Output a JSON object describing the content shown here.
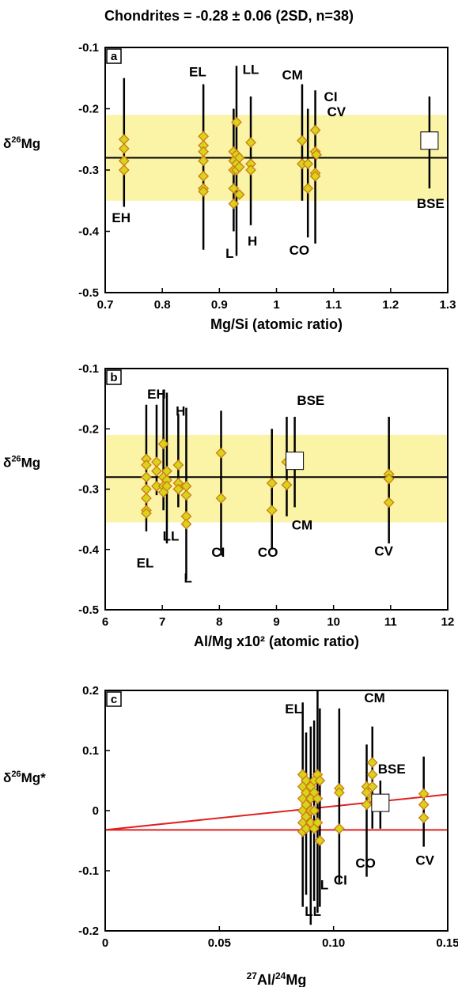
{
  "figure_title": "Chondrites = -0.28 ± 0.06 (2SD, n=38)",
  "style": {
    "band_color": "#fbf3a6",
    "ref_line_color": "#000000",
    "red_line_color": "#e02020",
    "marker_fill": "#d6d41c",
    "marker_edge": "#d07a10",
    "errorbar_color": "#000000"
  },
  "chart_data": [
    {
      "panel": "a",
      "type": "scatter",
      "xlabel": "Mg/Si (atomic ratio)",
      "ylabel": "δ26Mg",
      "xlim": [
        0.7,
        1.3
      ],
      "ylim": [
        -0.5,
        -0.1
      ],
      "xticks": [
        "0.7",
        "0.8",
        "0.9",
        "1",
        "1.1",
        "1.2",
        "1.3"
      ],
      "yticks": [
        "-0.5",
        "-0.4",
        "-0.3",
        "-0.2",
        "-0.1"
      ],
      "reference_line": -0.28,
      "band": [
        -0.35,
        -0.21
      ],
      "points": [
        {
          "x": 0.733,
          "y": -0.25,
          "lo": -0.36,
          "hi": -0.15
        },
        {
          "x": 0.733,
          "y": -0.265
        },
        {
          "x": 0.733,
          "y": -0.285
        },
        {
          "x": 0.733,
          "y": -0.3
        },
        {
          "x": 0.872,
          "y": -0.245,
          "lo": -0.43,
          "hi": -0.16
        },
        {
          "x": 0.872,
          "y": -0.26
        },
        {
          "x": 0.872,
          "y": -0.27
        },
        {
          "x": 0.872,
          "y": -0.285
        },
        {
          "x": 0.872,
          "y": -0.31
        },
        {
          "x": 0.872,
          "y": -0.33
        },
        {
          "x": 0.872,
          "y": -0.335
        },
        {
          "x": 0.925,
          "y": -0.27,
          "lo": -0.4,
          "hi": -0.2
        },
        {
          "x": 0.925,
          "y": -0.285
        },
        {
          "x": 0.925,
          "y": -0.3
        },
        {
          "x": 0.925,
          "y": -0.33
        },
        {
          "x": 0.925,
          "y": -0.355
        },
        {
          "x": 0.93,
          "y": -0.222,
          "lo": -0.44,
          "hi": -0.13
        },
        {
          "x": 0.93,
          "y": -0.275
        },
        {
          "x": 0.93,
          "y": -0.29
        },
        {
          "x": 0.93,
          "y": -0.3
        },
        {
          "x": 0.935,
          "y": -0.28
        },
        {
          "x": 0.935,
          "y": -0.295
        },
        {
          "x": 0.935,
          "y": -0.34
        },
        {
          "x": 0.955,
          "y": -0.255,
          "lo": -0.39,
          "hi": -0.18
        },
        {
          "x": 0.955,
          "y": -0.29
        },
        {
          "x": 0.955,
          "y": -0.3
        },
        {
          "x": 1.045,
          "y": -0.252,
          "lo": -0.35,
          "hi": -0.16
        },
        {
          "x": 1.045,
          "y": -0.29
        },
        {
          "x": 1.055,
          "y": -0.29
        },
        {
          "x": 1.055,
          "y": -0.33,
          "lo": -0.41,
          "hi": -0.2
        },
        {
          "x": 1.068,
          "y": -0.235,
          "lo": -0.42,
          "hi": -0.17
        },
        {
          "x": 1.068,
          "y": -0.27
        },
        {
          "x": 1.068,
          "y": -0.305
        },
        {
          "x": 1.068,
          "y": -0.31
        },
        {
          "x": 1.07,
          "y": -0.275
        }
      ],
      "bse": {
        "x": 1.268,
        "y": -0.252,
        "lo": -0.33,
        "hi": -0.18
      },
      "labels": [
        {
          "text": "EH",
          "x": 0.728,
          "y": -0.385
        },
        {
          "text": "EL",
          "x": 0.862,
          "y": -0.147
        },
        {
          "text": "LL",
          "x": 0.955,
          "y": -0.143
        },
        {
          "text": "CM",
          "x": 1.028,
          "y": -0.152
        },
        {
          "text": "CI",
          "x": 1.095,
          "y": -0.188
        },
        {
          "text": "CV",
          "x": 1.105,
          "y": -0.212
        },
        {
          "text": "BSE",
          "x": 1.27,
          "y": -0.362
        },
        {
          "text": "H",
          "x": 0.958,
          "y": -0.423
        },
        {
          "text": "L",
          "x": 0.918,
          "y": -0.443
        },
        {
          "text": "CO",
          "x": 1.04,
          "y": -0.438
        }
      ]
    },
    {
      "panel": "b",
      "type": "scatter",
      "xlabel": "Al/Mg x10² (atomic ratio)",
      "ylabel": "δ26Mg",
      "xlim": [
        6,
        12
      ],
      "ylim": [
        -0.5,
        -0.1
      ],
      "xticks": [
        "6",
        "7",
        "8",
        "9",
        "10",
        "11",
        "12"
      ],
      "yticks": [
        "-0.5",
        "-0.4",
        "-0.3",
        "-0.2",
        "-0.1"
      ],
      "reference_line": -0.28,
      "band": [
        -0.355,
        -0.21
      ],
      "points": [
        {
          "x": 6.72,
          "y": -0.25,
          "lo": -0.37,
          "hi": -0.16
        },
        {
          "x": 6.72,
          "y": -0.26
        },
        {
          "x": 6.72,
          "y": -0.28
        },
        {
          "x": 6.72,
          "y": -0.3
        },
        {
          "x": 6.72,
          "y": -0.315
        },
        {
          "x": 6.72,
          "y": -0.335
        },
        {
          "x": 6.72,
          "y": -0.34
        },
        {
          "x": 6.9,
          "y": -0.255,
          "lo": -0.31,
          "hi": -0.16
        },
        {
          "x": 6.9,
          "y": -0.27
        },
        {
          "x": 6.9,
          "y": -0.295
        },
        {
          "x": 7.02,
          "y": -0.225,
          "lo": -0.335,
          "hi": -0.135
        },
        {
          "x": 7.02,
          "y": -0.28
        },
        {
          "x": 7.02,
          "y": -0.295
        },
        {
          "x": 7.02,
          "y": -0.305
        },
        {
          "x": 7.08,
          "y": -0.285,
          "lo": -0.39,
          "hi": -0.14
        },
        {
          "x": 7.08,
          "y": -0.27
        },
        {
          "x": 7.08,
          "y": -0.295
        },
        {
          "x": 7.28,
          "y": -0.26,
          "lo": -0.33,
          "hi": -0.175
        },
        {
          "x": 7.28,
          "y": -0.29
        },
        {
          "x": 7.28,
          "y": -0.3
        },
        {
          "x": 7.42,
          "y": -0.295,
          "lo": -0.45,
          "hi": -0.165
        },
        {
          "x": 7.42,
          "y": -0.31
        },
        {
          "x": 7.42,
          "y": -0.345
        },
        {
          "x": 7.42,
          "y": -0.358
        },
        {
          "x": 8.03,
          "y": -0.24,
          "lo": -0.41,
          "hi": -0.17
        },
        {
          "x": 8.03,
          "y": -0.315
        },
        {
          "x": 8.92,
          "y": -0.29,
          "lo": -0.4,
          "hi": -0.2
        },
        {
          "x": 8.92,
          "y": -0.335
        },
        {
          "x": 9.18,
          "y": -0.293,
          "lo": -0.345,
          "hi": -0.18
        },
        {
          "x": 9.18,
          "y": -0.255
        },
        {
          "x": 10.97,
          "y": -0.275,
          "lo": -0.39,
          "hi": -0.18
        },
        {
          "x": 10.97,
          "y": -0.283
        },
        {
          "x": 10.97,
          "y": -0.322
        }
      ],
      "bse": {
        "x": 9.32,
        "y": -0.253,
        "lo": -0.33,
        "hi": -0.18
      },
      "labels": [
        {
          "text": "EH",
          "x": 6.9,
          "y": -0.15
        },
        {
          "text": "H",
          "x": 7.32,
          "y": -0.178
        },
        {
          "text": "BSE",
          "x": 9.6,
          "y": -0.16
        },
        {
          "text": "LL",
          "x": 7.15,
          "y": -0.385
        },
        {
          "text": "CM",
          "x": 9.45,
          "y": -0.367
        },
        {
          "text": "CV",
          "x": 10.88,
          "y": -0.41
        },
        {
          "text": "CI",
          "x": 7.98,
          "y": -0.412
        },
        {
          "text": "CO",
          "x": 8.85,
          "y": -0.412
        },
        {
          "text": "EL",
          "x": 6.7,
          "y": -0.43
        },
        {
          "text": "L",
          "x": 7.45,
          "y": -0.455
        }
      ]
    },
    {
      "panel": "c",
      "type": "scatter",
      "xlabel": "27Al/24Mg",
      "ylabel": "δ26Mg*",
      "xlim": [
        0,
        0.15
      ],
      "ylim": [
        -0.2,
        0.2
      ],
      "xticks": [
        "0",
        "0.05",
        "0.10",
        "0.15"
      ],
      "yticks": [
        "-0.2",
        "-0.1",
        "0",
        "0.1",
        "0.2"
      ],
      "reference_line": -0.03,
      "red_lines": [
        {
          "x0": 0,
          "y0": -0.032,
          "x1": 0.15,
          "y1": -0.032
        },
        {
          "x0": 0,
          "y0": -0.032,
          "x1": 0.15,
          "y1": 0.027
        }
      ],
      "points": [
        {
          "x": 0.0865,
          "y": 0.06,
          "lo": -0.16,
          "hi": 0.18
        },
        {
          "x": 0.0865,
          "y": 0.04
        },
        {
          "x": 0.0865,
          "y": 0.02
        },
        {
          "x": 0.0865,
          "y": 0.0
        },
        {
          "x": 0.0865,
          "y": -0.02
        },
        {
          "x": 0.0865,
          "y": -0.035
        },
        {
          "x": 0.088,
          "y": 0.05,
          "lo": -0.14,
          "hi": 0.13
        },
        {
          "x": 0.088,
          "y": 0.03
        },
        {
          "x": 0.088,
          "y": 0.01
        },
        {
          "x": 0.088,
          "y": -0.01
        },
        {
          "x": 0.088,
          "y": -0.03
        },
        {
          "x": 0.09,
          "y": 0.04,
          "lo": -0.19,
          "hi": 0.14
        },
        {
          "x": 0.09,
          "y": 0.02
        },
        {
          "x": 0.09,
          "y": 0.0
        },
        {
          "x": 0.09,
          "y": -0.02
        },
        {
          "x": 0.0915,
          "y": 0.05,
          "lo": -0.15,
          "hi": 0.15
        },
        {
          "x": 0.0915,
          "y": 0.03
        },
        {
          "x": 0.0915,
          "y": 0.0
        },
        {
          "x": 0.0915,
          "y": -0.03
        },
        {
          "x": 0.093,
          "y": 0.06,
          "lo": -0.17,
          "hi": 0.2
        },
        {
          "x": 0.093,
          "y": 0.02
        },
        {
          "x": 0.093,
          "y": -0.02
        },
        {
          "x": 0.094,
          "y": 0.05,
          "lo": -0.16,
          "hi": 0.17
        },
        {
          "x": 0.094,
          "y": -0.05
        },
        {
          "x": 0.1025,
          "y": 0.037,
          "lo": -0.12,
          "hi": 0.17
        },
        {
          "x": 0.1025,
          "y": 0.03
        },
        {
          "x": 0.1025,
          "y": -0.03
        },
        {
          "x": 0.1145,
          "y": 0.04,
          "lo": -0.11,
          "hi": 0.11
        },
        {
          "x": 0.1145,
          "y": 0.03
        },
        {
          "x": 0.1145,
          "y": 0.01
        },
        {
          "x": 0.117,
          "y": 0.08,
          "lo": -0.03,
          "hi": 0.14
        },
        {
          "x": 0.117,
          "y": 0.06
        },
        {
          "x": 0.117,
          "y": 0.04
        },
        {
          "x": 0.117,
          "y": 0.02
        },
        {
          "x": 0.1395,
          "y": 0.028,
          "lo": -0.06,
          "hi": 0.09
        },
        {
          "x": 0.1395,
          "y": 0.01
        },
        {
          "x": 0.1395,
          "y": -0.012
        }
      ],
      "bse": {
        "x": 0.1205,
        "y": 0.013,
        "lo": -0.03,
        "hi": 0.05
      },
      "labels": [
        {
          "text": "EL",
          "x": 0.0825,
          "y": 0.162
        },
        {
          "text": "CM",
          "x": 0.118,
          "y": 0.18
        },
        {
          "text": "BSE",
          "x": 0.1255,
          "y": 0.062
        },
        {
          "text": "CV",
          "x": 0.14,
          "y": -0.09
        },
        {
          "text": "CO",
          "x": 0.114,
          "y": -0.095
        },
        {
          "text": "CI",
          "x": 0.103,
          "y": -0.123
        },
        {
          "text": "L",
          "x": 0.096,
          "y": -0.131
        },
        {
          "text": "LL",
          "x": 0.091,
          "y": -0.175
        }
      ]
    }
  ]
}
